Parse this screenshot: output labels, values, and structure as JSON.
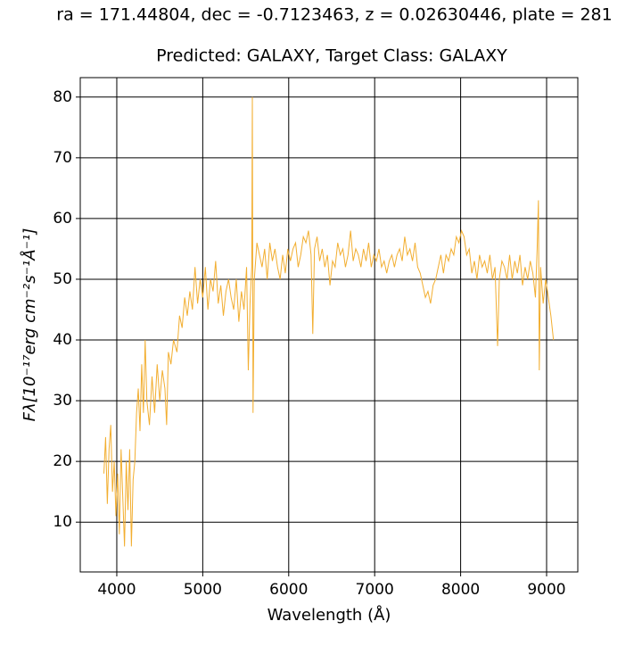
{
  "chart_data": {
    "type": "line",
    "title": "ra = 171.44804, dec = -0.7123463, z = 0.02630446, plate = 281",
    "subtitle": "Predicted: GALAXY, Target Class: GALAXY",
    "x_label": "Wavelength (Å)",
    "y_label": "Fλ[10⁻¹⁷erg cm⁻²s⁻¹Å⁻¹]",
    "xlim": [
      3575,
      9363
    ],
    "ylim": [
      1.8,
      83.2
    ],
    "xticks": [
      4000,
      5000,
      6000,
      7000,
      8000,
      9000
    ],
    "yticks": [
      10,
      20,
      30,
      40,
      50,
      60,
      70,
      80
    ],
    "grid": true,
    "x": [
      3850,
      3870,
      3890,
      3910,
      3930,
      3950,
      3970,
      3990,
      4010,
      4030,
      4050,
      4070,
      4090,
      4110,
      4130,
      4150,
      4170,
      4190,
      4210,
      4230,
      4250,
      4270,
      4290,
      4310,
      4330,
      4350,
      4380,
      4410,
      4440,
      4470,
      4500,
      4530,
      4560,
      4580,
      4600,
      4630,
      4660,
      4700,
      4730,
      4760,
      4790,
      4820,
      4850,
      4880,
      4910,
      4940,
      4970,
      5000,
      5030,
      5060,
      5090,
      5120,
      5150,
      5180,
      5210,
      5240,
      5270,
      5300,
      5330,
      5360,
      5390,
      5420,
      5450,
      5480,
      5510,
      5530,
      5550,
      5570,
      5577,
      5585,
      5600,
      5630,
      5660,
      5690,
      5720,
      5750,
      5780,
      5810,
      5840,
      5870,
      5900,
      5930,
      5960,
      5990,
      6020,
      6050,
      6080,
      6110,
      6140,
      6170,
      6200,
      6230,
      6260,
      6280,
      6300,
      6330,
      6360,
      6390,
      6420,
      6450,
      6480,
      6510,
      6540,
      6570,
      6600,
      6630,
      6660,
      6690,
      6720,
      6750,
      6780,
      6810,
      6840,
      6870,
      6900,
      6930,
      6960,
      6990,
      7020,
      7050,
      7080,
      7110,
      7140,
      7170,
      7200,
      7230,
      7260,
      7290,
      7320,
      7350,
      7380,
      7410,
      7440,
      7470,
      7500,
      7530,
      7560,
      7590,
      7620,
      7650,
      7680,
      7710,
      7740,
      7770,
      7800,
      7830,
      7860,
      7890,
      7920,
      7950,
      7980,
      8010,
      8040,
      8070,
      8100,
      8130,
      8160,
      8190,
      8220,
      8250,
      8280,
      8310,
      8340,
      8370,
      8400,
      8430,
      8450,
      8480,
      8510,
      8540,
      8570,
      8600,
      8630,
      8660,
      8690,
      8720,
      8750,
      8780,
      8810,
      8840,
      8870,
      8890,
      8905,
      8915,
      8930,
      8960,
      8990,
      9020,
      9050,
      9080
    ],
    "series": [
      {
        "color": "#f2ae30",
        "values": [
          18,
          24,
          13,
          22,
          26,
          15,
          20,
          11,
          18,
          8,
          22,
          14,
          6,
          20,
          12,
          22,
          6,
          17,
          20,
          28,
          32,
          25,
          36,
          28,
          40,
          30,
          26,
          34,
          28,
          36,
          30,
          35,
          32,
          26,
          38,
          36,
          40,
          38,
          44,
          42,
          47,
          44,
          48,
          45,
          52,
          46,
          50,
          47,
          52,
          45,
          50,
          48,
          53,
          46,
          49,
          44,
          48,
          50,
          47,
          45,
          50,
          43,
          48,
          45,
          52,
          35,
          46,
          52,
          80,
          28,
          50,
          56,
          54,
          52,
          55,
          50,
          56,
          53,
          55,
          52,
          50,
          54,
          51,
          55,
          53,
          55,
          56,
          52,
          54,
          57,
          56,
          58,
          54,
          41,
          55,
          57,
          53,
          55,
          52,
          54,
          49,
          53,
          52,
          56,
          54,
          55,
          52,
          54,
          58,
          53,
          55,
          54,
          52,
          55,
          53,
          56,
          52,
          54,
          53,
          55,
          52,
          53,
          51,
          53,
          54,
          52,
          54,
          55,
          53,
          57,
          54,
          55,
          53,
          56,
          52,
          51,
          49,
          47,
          48,
          46,
          49,
          50,
          52,
          54,
          51,
          54,
          53,
          55,
          54,
          57,
          56,
          58,
          57,
          54,
          55,
          51,
          53,
          50,
          54,
          52,
          53,
          51,
          54,
          50,
          52,
          39,
          50,
          53,
          52,
          50,
          54,
          50,
          53,
          51,
          54,
          49,
          52,
          50,
          53,
          51,
          47,
          55,
          63,
          35,
          52,
          46,
          50,
          47,
          44,
          40
        ]
      }
    ]
  }
}
